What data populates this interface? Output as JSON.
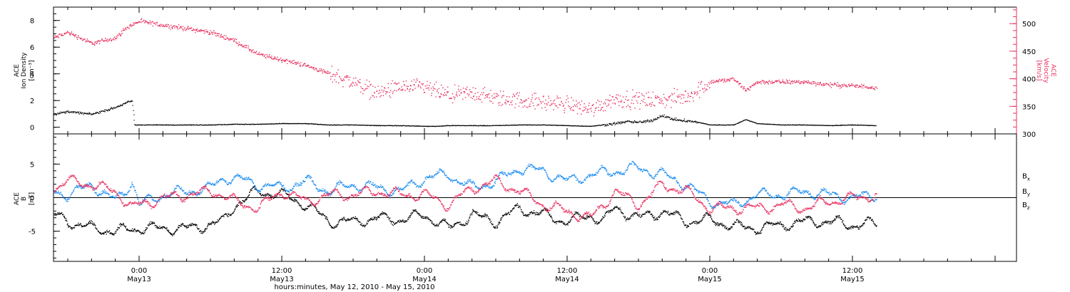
{
  "figure": {
    "time_axis_title": "hours:minutes, May 12, 2010 - May 15, 2010",
    "time_ticks": [
      {
        "hour": 24,
        "label1": "0:00",
        "label2": "May13"
      },
      {
        "hour": 36,
        "label1": "12:00",
        "label2": "May13"
      },
      {
        "hour": 48,
        "label1": "0:00",
        "label2": "May14"
      },
      {
        "hour": 60,
        "label1": "12:00",
        "label2": "May14"
      },
      {
        "hour": 72,
        "label1": "0:00",
        "label2": "May15"
      },
      {
        "hour": 84,
        "label1": "12:00",
        "label2": "May15"
      }
    ],
    "colors": {
      "black": "#000000",
      "pink": "#e8305f",
      "blue": "#1a8cf0"
    }
  },
  "chart_data": [
    {
      "type": "scatter",
      "panel": "top",
      "ylabel_left": [
        "ACE",
        "Ion Density",
        "[cm⁻³]"
      ],
      "ylabel_right": [
        "ACE",
        "Velocity",
        "[km/s]"
      ],
      "xlim_hours": [
        16.8,
        97.8
      ],
      "ylim_left": [
        -0.5,
        9
      ],
      "ylim_right": [
        300,
        530
      ],
      "left_ticks": [
        0,
        2,
        4,
        6,
        8
      ],
      "right_ticks": [
        300,
        350,
        400,
        450,
        500
      ],
      "series": [
        {
          "axis": "left",
          "color": "#000000",
          "x": [
            16.8,
            18,
            20,
            22,
            23,
            23.4,
            23.6,
            24,
            26,
            28,
            30,
            32,
            34,
            36,
            38,
            40,
            42,
            44,
            46,
            48,
            49,
            50,
            52,
            54,
            56,
            58,
            60,
            62,
            63,
            64,
            65,
            66,
            67,
            68,
            69,
            70,
            71,
            72,
            74,
            75,
            76,
            78,
            80,
            82,
            84,
            86
          ],
          "y": [
            1.0,
            1.2,
            1.0,
            1.5,
            1.9,
            2.0,
            0.2,
            0.2,
            0.2,
            0.2,
            0.2,
            0.25,
            0.25,
            0.3,
            0.3,
            0.2,
            0.2,
            0.15,
            0.15,
            0.1,
            0.1,
            0.15,
            0.15,
            0.15,
            0.2,
            0.2,
            0.15,
            0.1,
            0.2,
            0.3,
            0.45,
            0.4,
            0.5,
            0.9,
            0.6,
            0.5,
            0.4,
            0.2,
            0.2,
            0.6,
            0.3,
            0.2,
            0.2,
            0.15,
            0.2,
            0.15
          ]
        },
        {
          "axis": "right",
          "color": "#e8305f",
          "x": [
            16.8,
            18,
            20,
            22,
            23,
            24,
            26,
            28,
            30,
            32,
            34,
            36,
            38,
            40,
            42,
            44,
            46,
            48,
            50,
            52,
            54,
            56,
            58,
            60,
            62,
            64,
            66,
            68,
            70,
            71,
            72,
            74,
            75,
            76,
            78,
            80,
            82,
            84,
            86
          ],
          "y": [
            475,
            485,
            465,
            475,
            495,
            505,
            498,
            492,
            485,
            470,
            445,
            435,
            425,
            410,
            395,
            375,
            385,
            385,
            370,
            375,
            365,
            362,
            358,
            355,
            345,
            365,
            362,
            362,
            368,
            380,
            395,
            400,
            380,
            395,
            395,
            395,
            390,
            388,
            385
          ]
        }
      ]
    },
    {
      "type": "scatter",
      "panel": "bottom",
      "ylabel_left": [
        "ACE",
        "B",
        "[nT]"
      ],
      "xlim_hours": [
        16.8,
        97.8
      ],
      "ylim": [
        -9.5,
        9.5
      ],
      "ticks": [
        -5,
        0,
        5
      ],
      "zero_line": true,
      "legend": {
        "placement": "right",
        "entries": [
          "Bx",
          "By",
          "Bz"
        ]
      },
      "series": [
        {
          "name": "Bx",
          "color": "#000000",
          "x": [
            16.8,
            18,
            20,
            22,
            23.4,
            24,
            26,
            28,
            30,
            31,
            32,
            34,
            36,
            38,
            40,
            42,
            44,
            46,
            48,
            50,
            52,
            54,
            56,
            58,
            60,
            62,
            63,
            64,
            66,
            68,
            70,
            72,
            74,
            76,
            78,
            80,
            82,
            84,
            86
          ],
          "y": [
            -2.5,
            -3.5,
            -4.5,
            -5.0,
            -4.6,
            -4.5,
            -4.5,
            -4.5,
            -4.0,
            -3.5,
            -1.0,
            1.0,
            0.5,
            -1.0,
            -3.5,
            -3.5,
            -3.0,
            -3.2,
            -2.5,
            -4.5,
            -2.5,
            -3.5,
            -1.5,
            -2.5,
            -3.5,
            -2.5,
            -3.5,
            -1.5,
            -3.0,
            -2.0,
            -3.5,
            -3.2,
            -4.2,
            -4.5,
            -4.0,
            -3.5,
            -3.5,
            -4.0,
            -3.8
          ]
        },
        {
          "name": "By",
          "color": "#1a8cf0",
          "x": [
            16.8,
            18,
            20,
            22,
            23.4,
            24,
            26,
            28,
            30,
            31,
            32,
            34,
            36,
            38,
            40,
            42,
            44,
            46,
            48,
            50,
            52,
            54,
            56,
            58,
            60,
            62,
            64,
            66,
            68,
            70,
            72,
            74,
            76,
            78,
            80,
            82,
            84,
            86
          ],
          "y": [
            1.0,
            0.5,
            2.0,
            -0.5,
            2.5,
            -1.0,
            0.5,
            1.0,
            1.5,
            3.0,
            3.0,
            2.0,
            1.5,
            2.5,
            1.0,
            2.0,
            1.5,
            1.0,
            3.0,
            3.5,
            1.5,
            2.5,
            4.5,
            4.0,
            2.5,
            3.5,
            4.0,
            4.5,
            3.5,
            2.0,
            -0.5,
            -1.0,
            0.5,
            0.5,
            1.0,
            0.5,
            0.0,
            0.5
          ]
        },
        {
          "name": "Bz",
          "color": "#e8305f",
          "x": [
            16.8,
            18,
            20,
            22,
            23.4,
            24,
            26,
            28,
            30,
            31,
            32,
            34,
            36,
            38,
            40,
            42,
            44,
            46,
            48,
            50,
            52,
            54,
            56,
            58,
            60,
            62,
            64,
            66,
            68,
            70,
            72,
            74,
            76,
            78,
            80,
            82,
            84,
            86
          ],
          "y": [
            1.5,
            2.5,
            2.0,
            1.0,
            -1.5,
            -1.0,
            0.0,
            0.5,
            1.0,
            0.5,
            -0.5,
            -1.5,
            1.0,
            -0.5,
            0.5,
            0.5,
            1.0,
            0.5,
            0.5,
            -1.0,
            1.5,
            2.5,
            1.0,
            -1.0,
            -2.0,
            -3.0,
            1.0,
            -1.0,
            2.0,
            1.0,
            -1.5,
            -1.5,
            -1.5,
            -1.0,
            -1.5,
            -0.5,
            0.0,
            0.5
          ]
        }
      ]
    }
  ]
}
